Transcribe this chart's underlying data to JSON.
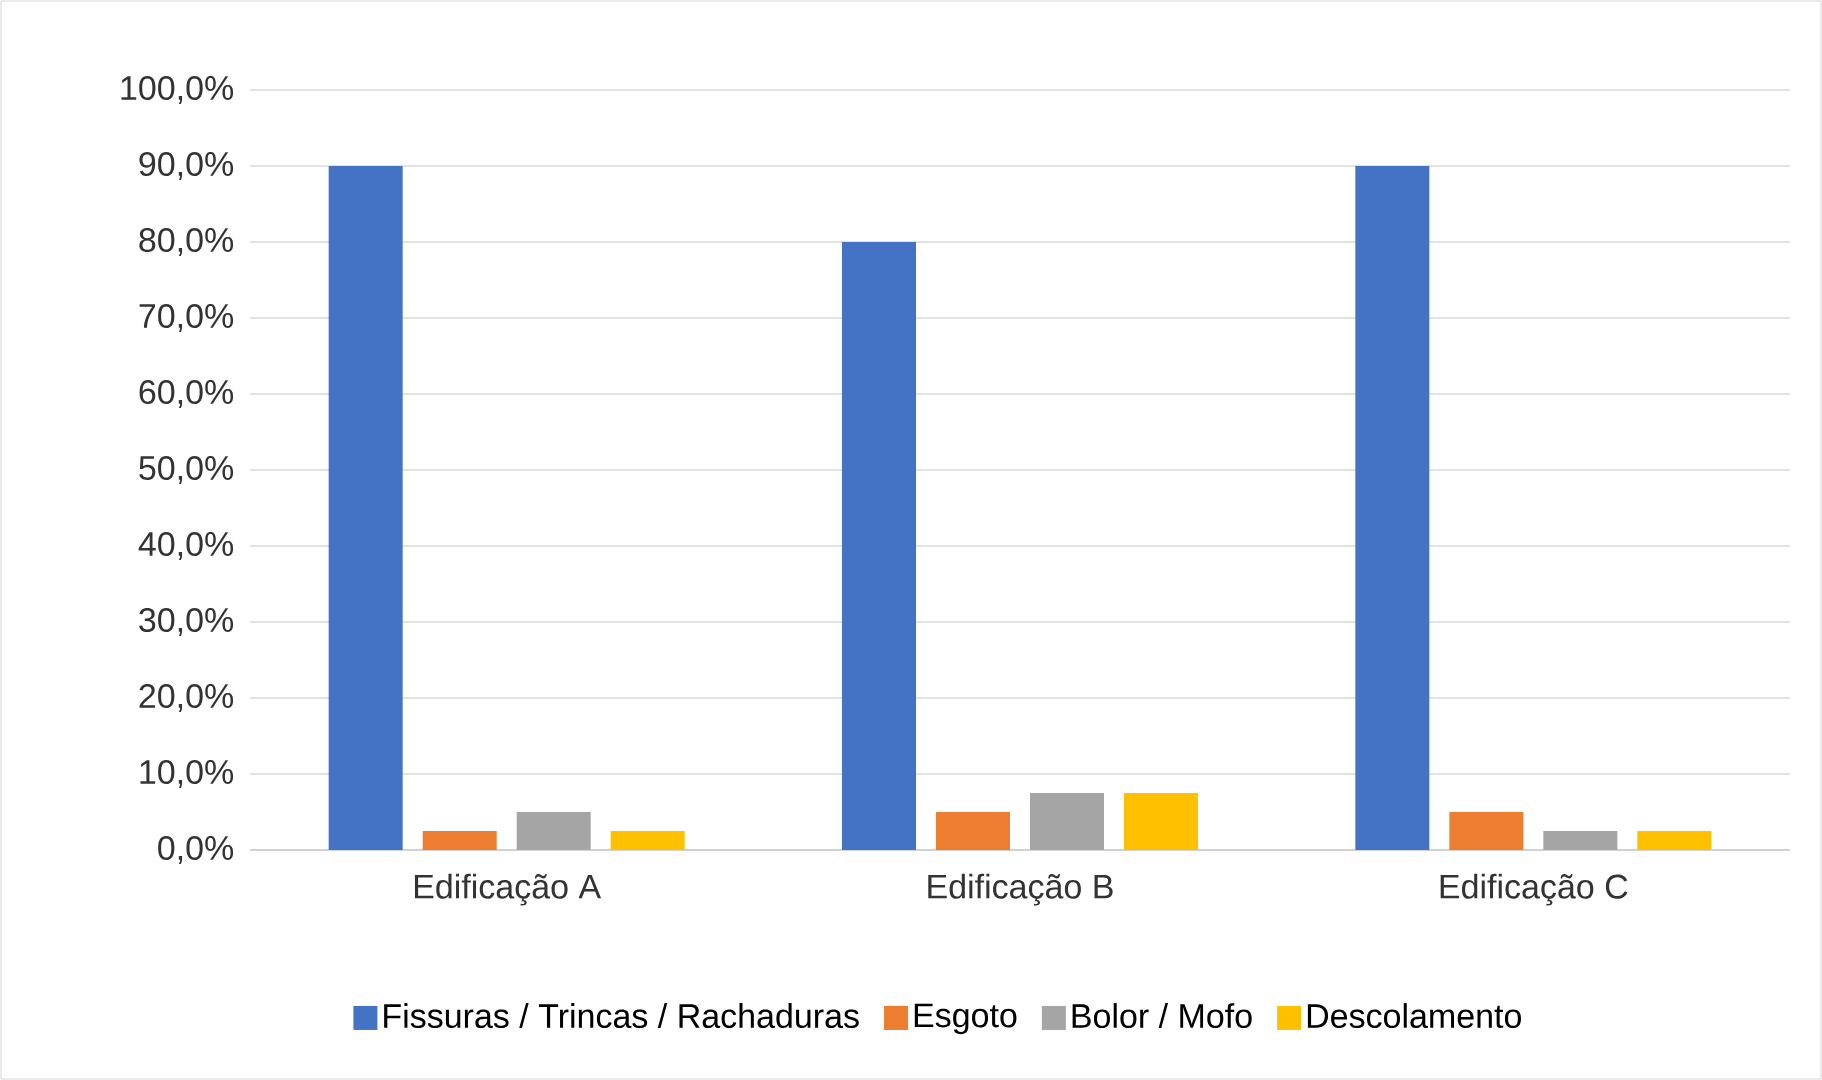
{
  "chart_data": {
    "type": "bar",
    "categories": [
      "Edificação A",
      "Edificação B",
      "Edificação C"
    ],
    "series": [
      {
        "name": "Fissuras / Trincas / Rachaduras",
        "color": "#4472c4",
        "values": [
          90,
          80,
          90
        ]
      },
      {
        "name": "Esgoto",
        "color": "#ed7d31",
        "values": [
          2.5,
          5,
          5
        ]
      },
      {
        "name": "Bolor / Mofo",
        "color": "#a5a5a5",
        "values": [
          5,
          7.5,
          2.5
        ]
      },
      {
        "name": "Descolamento",
        "color": "#ffc000",
        "values": [
          2.5,
          7.5,
          2.5
        ]
      }
    ],
    "ylim": [
      0,
      100
    ],
    "yticks": [
      {
        "value": 0,
        "label": "0,0%"
      },
      {
        "value": 10,
        "label": "10,0%"
      },
      {
        "value": 20,
        "label": "20,0%"
      },
      {
        "value": 30,
        "label": "30,0%"
      },
      {
        "value": 40,
        "label": "40,0%"
      },
      {
        "value": 50,
        "label": "50,0%"
      },
      {
        "value": 60,
        "label": "60,0%"
      },
      {
        "value": 70,
        "label": "70,0%"
      },
      {
        "value": 80,
        "label": "80,0%"
      },
      {
        "value": 90,
        "label": "90,0%"
      },
      {
        "value": 100,
        "label": "100,0%"
      }
    ],
    "grid": "y",
    "legend": "bottom"
  }
}
